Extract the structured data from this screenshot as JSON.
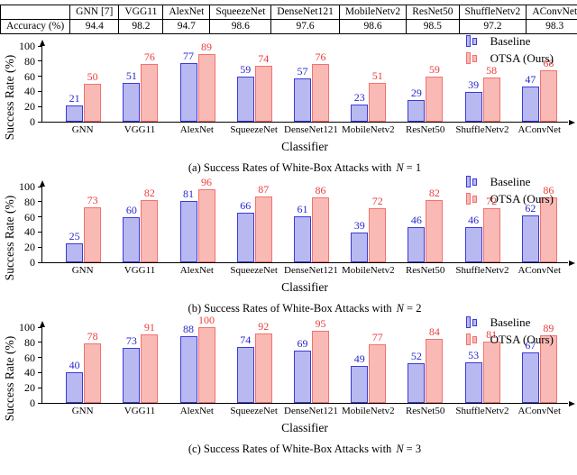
{
  "accuracy_table": {
    "corner_label": "",
    "row_label": "Accuracy (%)",
    "columns": [
      "GNN [7]",
      "VGG11",
      "AlexNet",
      "SqueezeNet",
      "DenseNet121",
      "MobileNetv2",
      "ResNet50",
      "ShuffleNetv2",
      "AConvNet"
    ],
    "values": [
      "94.4",
      "98.2",
      "94.7",
      "98.6",
      "97.6",
      "98.6",
      "98.5",
      "97.2",
      "98.3"
    ]
  },
  "legend": {
    "baseline_label": "Baseline",
    "otsa_label": "OTSA (Ours)"
  },
  "axis": {
    "ylabel": "Success Rate (%)",
    "xlabel": "Classifier"
  },
  "colors": {
    "baseline_fill": "#b9b9f1",
    "baseline_border": "#3a3ad8",
    "baseline_text": "#2727cc",
    "otsa_fill": "#f9bab6",
    "otsa_border": "#f4716d",
    "otsa_text": "#ee3b3b",
    "axis_color": "#000000"
  },
  "captions": [
    {
      "prefix": "(a) Success Rates of White-Box Attacks with",
      "math_var": "N",
      "math_rest": "= 1"
    },
    {
      "prefix": "(b) Success Rates of White-Box Attacks with",
      "math_var": "N",
      "math_rest": "= 2"
    },
    {
      "prefix": "(c) Success Rates of White-Box Attacks with",
      "math_var": "N",
      "math_rest": "= 3"
    }
  ],
  "chart_data": [
    {
      "type": "bar",
      "title": "(a) Success Rates of White-Box Attacks with N = 1",
      "categories": [
        "GNN",
        "VGG11",
        "AlexNet",
        "SqueezeNet",
        "DenseNet121",
        "MobileNetv2",
        "ResNet50",
        "ShuffleNetv2",
        "AConvNet"
      ],
      "series": [
        {
          "name": "Baseline",
          "values": [
            21,
            51,
            77,
            59,
            57,
            23,
            29,
            39,
            47
          ]
        },
        {
          "name": "OTSA (Ours)",
          "values": [
            50,
            76,
            89,
            74,
            76,
            51,
            59,
            58,
            68
          ]
        }
      ],
      "xlabel": "Classifier",
      "ylabel": "Success Rate (%)",
      "ylim": [
        0,
        100
      ],
      "yticks": [
        0,
        20,
        40,
        60,
        80,
        100
      ],
      "legend_position": "top-right",
      "grid": false
    },
    {
      "type": "bar",
      "title": "(b) Success Rates of White-Box Attacks with N = 2",
      "categories": [
        "GNN",
        "VGG11",
        "AlexNet",
        "SqueezeNet",
        "DenseNet121",
        "MobileNetv2",
        "ResNet50",
        "ShuffleNetv2",
        "AConvNet"
      ],
      "series": [
        {
          "name": "Baseline",
          "values": [
            25,
            60,
            81,
            66,
            61,
            39,
            46,
            46,
            62
          ]
        },
        {
          "name": "OTSA (Ours)",
          "values": [
            73,
            82,
            96,
            87,
            86,
            72,
            82,
            72,
            86
          ]
        }
      ],
      "xlabel": "Classifier",
      "ylabel": "Success Rate (%)",
      "ylim": [
        0,
        100
      ],
      "yticks": [
        0,
        20,
        40,
        60,
        80,
        100
      ],
      "legend_position": "top-right",
      "grid": false
    },
    {
      "type": "bar",
      "title": "(c) Success Rates of White-Box Attacks with N = 3",
      "categories": [
        "GNN",
        "VGG11",
        "AlexNet",
        "SqueezeNet",
        "DenseNet121",
        "MobileNetv2",
        "ResNet50",
        "ShuffleNetv2",
        "AConvNet"
      ],
      "series": [
        {
          "name": "Baseline",
          "values": [
            40,
            73,
            88,
            74,
            69,
            49,
            52,
            53,
            67
          ]
        },
        {
          "name": "OTSA (Ours)",
          "values": [
            78,
            91,
            100,
            92,
            95,
            77,
            84,
            81,
            89
          ]
        }
      ],
      "xlabel": "Classifier",
      "ylabel": "Success Rate (%)",
      "ylim": [
        0,
        100
      ],
      "yticks": [
        0,
        20,
        40,
        60,
        80,
        100
      ],
      "legend_position": "top-right",
      "grid": false
    }
  ]
}
